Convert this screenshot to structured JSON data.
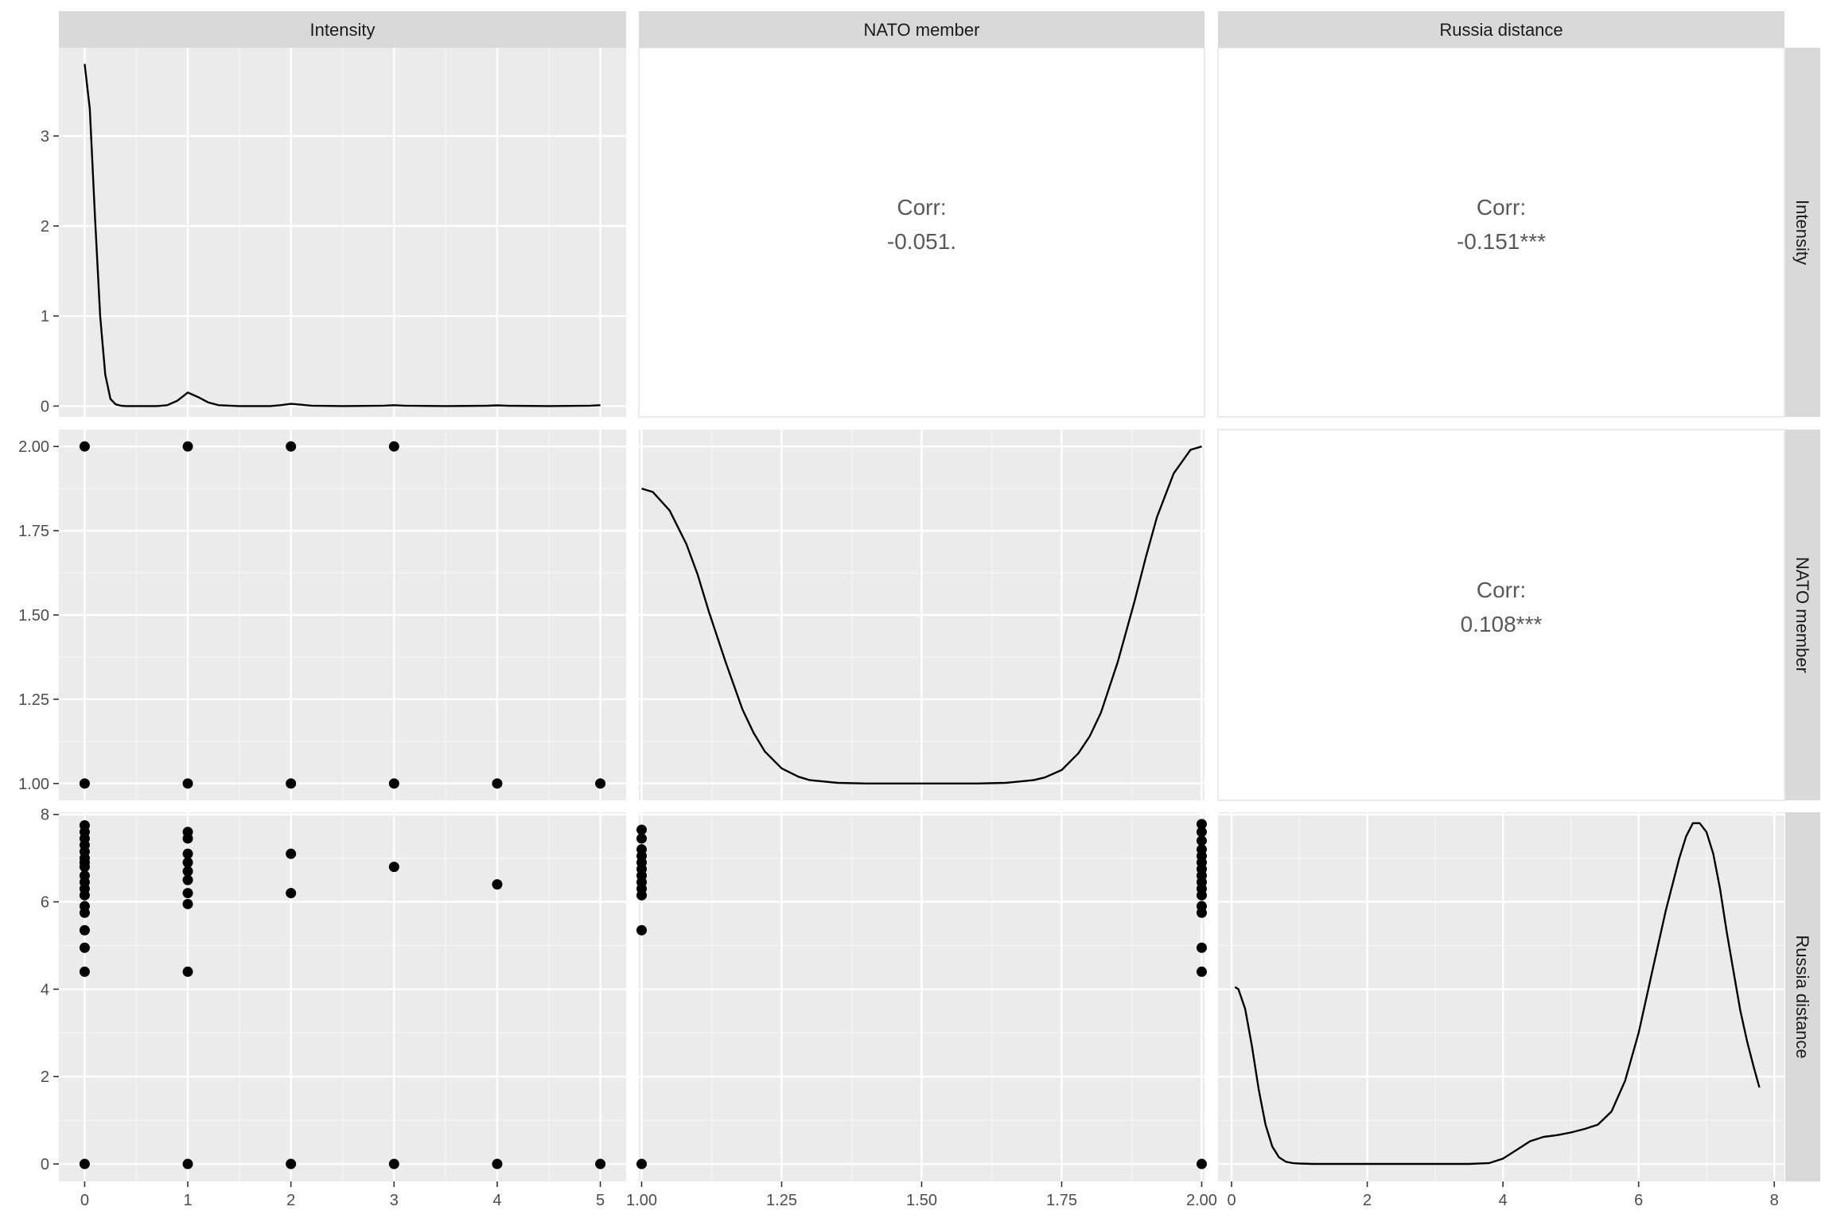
{
  "chart_data": {
    "type": "scatter",
    "layout": "pairs-plot",
    "variables": [
      "Intensity",
      "NATO member",
      "Russia distance"
    ],
    "colors": {
      "panel_bg": "#ebebeb",
      "grid_major": "#ffffff",
      "strip_bg": "#d9d9d9",
      "marks": "#000000",
      "corr_text": "#595959"
    },
    "strips": {
      "top": [
        "Intensity",
        "NATO member",
        "Russia distance"
      ],
      "right": [
        "Intensity",
        "NATO member",
        "Russia distance"
      ]
    },
    "x_axes": [
      {
        "range": [
          -0.25,
          5.25
        ],
        "ticks": [
          0,
          1,
          2,
          3,
          4,
          5
        ],
        "labels": [
          "0",
          "1",
          "2",
          "3",
          "4",
          "5"
        ]
      },
      {
        "range": [
          0.995,
          2.005
        ],
        "ticks": [
          1.0,
          1.25,
          1.5,
          1.75,
          2.0
        ],
        "labels": [
          "1.00",
          "1.25",
          "1.50",
          "1.75",
          "2.00"
        ]
      },
      {
        "range": [
          -0.2,
          8.15
        ],
        "ticks": [
          0,
          2,
          4,
          6,
          8
        ],
        "labels": [
          "0",
          "2",
          "4",
          "6",
          "8"
        ]
      }
    ],
    "y_axes": [
      {
        "range": [
          -0.12,
          3.98
        ],
        "ticks": [
          0,
          1,
          2,
          3
        ],
        "labels": [
          "0",
          "1",
          "2",
          "3"
        ]
      },
      {
        "range": [
          0.95,
          2.05
        ],
        "ticks": [
          1.0,
          1.25,
          1.5,
          1.75,
          2.0
        ],
        "labels": [
          "1.00",
          "1.25",
          "1.50",
          "1.75",
          "2.00"
        ]
      },
      {
        "range": [
          -0.4,
          8.05
        ],
        "ticks": [
          0,
          2,
          4,
          6,
          8
        ],
        "labels": [
          "0",
          "2",
          "4",
          "6",
          "8"
        ]
      }
    ],
    "correlations": [
      {
        "row": 0,
        "col": 1,
        "label": "Corr:",
        "value": "-0.051."
      },
      {
        "row": 0,
        "col": 2,
        "label": "Corr:",
        "value": "-0.151***"
      },
      {
        "row": 1,
        "col": 2,
        "label": "Corr:",
        "value": "0.108***"
      }
    ],
    "densities": [
      {
        "var": "Intensity",
        "x": [
          0,
          0.05,
          0.1,
          0.15,
          0.2,
          0.25,
          0.3,
          0.35,
          0.4,
          0.5,
          0.6,
          0.7,
          0.8,
          0.9,
          1.0,
          1.1,
          1.2,
          1.3,
          1.5,
          1.8,
          1.9,
          2.0,
          2.1,
          2.2,
          2.5,
          2.9,
          3.0,
          3.1,
          3.5,
          3.9,
          4.0,
          4.1,
          4.5,
          4.9,
          5.0
        ],
        "y": [
          3.8,
          3.3,
          2.1,
          1.0,
          0.35,
          0.08,
          0.02,
          0.005,
          0.0,
          0.0,
          0.0,
          0.0,
          0.01,
          0.06,
          0.15,
          0.1,
          0.04,
          0.01,
          0.0,
          0.0,
          0.01,
          0.025,
          0.015,
          0.005,
          0.0,
          0.005,
          0.01,
          0.005,
          0.0,
          0.004,
          0.008,
          0.004,
          0.0,
          0.005,
          0.01
        ]
      },
      {
        "var": "NATO member",
        "x": [
          1.0,
          1.02,
          1.05,
          1.08,
          1.1,
          1.12,
          1.15,
          1.18,
          1.2,
          1.22,
          1.25,
          1.28,
          1.3,
          1.35,
          1.4,
          1.5,
          1.6,
          1.65,
          1.7,
          1.72,
          1.75,
          1.78,
          1.8,
          1.82,
          1.85,
          1.88,
          1.9,
          1.92,
          1.95,
          1.98,
          2.0
        ],
        "y": [
          1.875,
          1.865,
          1.81,
          1.71,
          1.62,
          1.51,
          1.36,
          1.22,
          1.15,
          1.095,
          1.045,
          1.02,
          1.01,
          1.002,
          1.0,
          1.0,
          1.0,
          1.002,
          1.01,
          1.018,
          1.04,
          1.09,
          1.14,
          1.21,
          1.36,
          1.54,
          1.67,
          1.79,
          1.92,
          1.99,
          2.0
        ]
      },
      {
        "var": "Russia distance",
        "x": [
          0.05,
          0.1,
          0.2,
          0.3,
          0.4,
          0.5,
          0.6,
          0.7,
          0.8,
          0.9,
          1.0,
          1.2,
          1.5,
          2.0,
          3.0,
          3.5,
          3.8,
          4.0,
          4.2,
          4.4,
          4.6,
          4.8,
          5.0,
          5.2,
          5.4,
          5.6,
          5.8,
          6.0,
          6.2,
          6.4,
          6.6,
          6.7,
          6.8,
          6.9,
          7.0,
          7.1,
          7.2,
          7.3,
          7.4,
          7.5,
          7.6,
          7.7,
          7.78
        ],
        "y": [
          4.05,
          4.0,
          3.55,
          2.7,
          1.7,
          0.9,
          0.4,
          0.15,
          0.05,
          0.02,
          0.01,
          0.0,
          0.0,
          0.0,
          0.0,
          0.0,
          0.02,
          0.12,
          0.32,
          0.52,
          0.62,
          0.66,
          0.72,
          0.8,
          0.9,
          1.2,
          1.9,
          3.0,
          4.4,
          5.8,
          7.0,
          7.5,
          7.8,
          7.8,
          7.6,
          7.1,
          6.3,
          5.3,
          4.4,
          3.5,
          2.8,
          2.2,
          1.75
        ]
      }
    ],
    "scatter_points": {
      "Intensity_vs_NATO member": [
        [
          0,
          2
        ],
        [
          1,
          2
        ],
        [
          2,
          2
        ],
        [
          3,
          2
        ],
        [
          0,
          1
        ],
        [
          1,
          1
        ],
        [
          2,
          1
        ],
        [
          3,
          1
        ],
        [
          4,
          1
        ],
        [
          5,
          1
        ]
      ],
      "Intensity_vs_Russia distance": [
        [
          0,
          7.75
        ],
        [
          0,
          7.6
        ],
        [
          0,
          7.45
        ],
        [
          0,
          7.3
        ],
        [
          0,
          7.15
        ],
        [
          0,
          7.0
        ],
        [
          0,
          6.9
        ],
        [
          0,
          6.8
        ],
        [
          0,
          6.6
        ],
        [
          0,
          6.45
        ],
        [
          0,
          6.3
        ],
        [
          0,
          6.15
        ],
        [
          0,
          5.9
        ],
        [
          0,
          5.75
        ],
        [
          0,
          5.35
        ],
        [
          0,
          4.95
        ],
        [
          0,
          4.4
        ],
        [
          0,
          0.0
        ],
        [
          1,
          7.6
        ],
        [
          1,
          7.45
        ],
        [
          1,
          7.1
        ],
        [
          1,
          6.9
        ],
        [
          1,
          6.7
        ],
        [
          1,
          6.5
        ],
        [
          1,
          6.2
        ],
        [
          1,
          5.95
        ],
        [
          1,
          4.4
        ],
        [
          1,
          0.0
        ],
        [
          2,
          7.1
        ],
        [
          2,
          6.2
        ],
        [
          2,
          0.0
        ],
        [
          3,
          6.8
        ],
        [
          3,
          0.0
        ],
        [
          4,
          6.4
        ],
        [
          4,
          0.0
        ],
        [
          5,
          0.0
        ]
      ],
      "NATO member_vs_Russia distance": [
        [
          1,
          7.65
        ],
        [
          1,
          7.45
        ],
        [
          1,
          7.2
        ],
        [
          1,
          7.05
        ],
        [
          1,
          6.9
        ],
        [
          1,
          6.75
        ],
        [
          1,
          6.6
        ],
        [
          1,
          6.45
        ],
        [
          1,
          6.3
        ],
        [
          1,
          6.15
        ],
        [
          1,
          5.35
        ],
        [
          1,
          0.0
        ],
        [
          2,
          7.78
        ],
        [
          2,
          7.6
        ],
        [
          2,
          7.4
        ],
        [
          2,
          7.2
        ],
        [
          2,
          7.05
        ],
        [
          2,
          6.9
        ],
        [
          2,
          6.75
        ],
        [
          2,
          6.6
        ],
        [
          2,
          6.45
        ],
        [
          2,
          6.3
        ],
        [
          2,
          6.15
        ],
        [
          2,
          5.9
        ],
        [
          2,
          5.75
        ],
        [
          2,
          4.95
        ],
        [
          2,
          4.4
        ],
        [
          2,
          0.0
        ]
      ]
    }
  }
}
